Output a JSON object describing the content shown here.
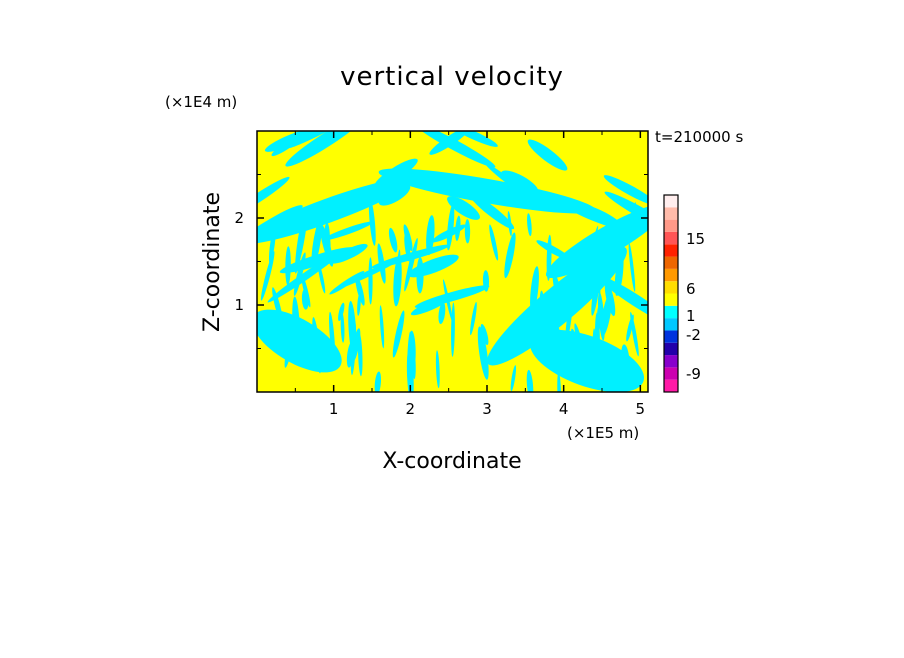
{
  "chart_data": {
    "type": "heatmap",
    "title": "vertical velocity",
    "time_label": "t=210000 s",
    "xlabel": "X-coordinate",
    "ylabel": "Z-coordinate",
    "x_unit": "(×1E5 m)",
    "y_unit": "(×1E4 m)",
    "xlim": [
      0,
      5.1
    ],
    "ylim": [
      0,
      3.0
    ],
    "x_ticks": [
      "1",
      "2",
      "3",
      "4",
      "5"
    ],
    "x_tick_values": [
      1,
      2,
      3,
      4,
      5
    ],
    "y_ticks": [
      "1",
      "2"
    ],
    "y_tick_values": [
      1,
      2
    ],
    "colorbar": {
      "labels": [
        "15",
        "6",
        "1",
        "-2",
        "-9"
      ],
      "label_values": [
        15,
        6,
        1,
        -2,
        -9
      ],
      "bands": [
        {
          "color": "#ff1aa6"
        },
        {
          "color": "#cc00b0"
        },
        {
          "color": "#8800cc"
        },
        {
          "color": "#2200aa"
        },
        {
          "color": "#0033dd"
        },
        {
          "color": "#00c8ff"
        },
        {
          "color": "#00ffff"
        },
        {
          "color": "#ffff00"
        },
        {
          "color": "#ffdd00"
        },
        {
          "color": "#ff9900"
        },
        {
          "color": "#ee6600"
        },
        {
          "color": "#ff2200"
        },
        {
          "color": "#ff5555"
        },
        {
          "color": "#ff9988"
        },
        {
          "color": "#ffbbaa"
        },
        {
          "color": "#ffeeee"
        }
      ]
    },
    "field_colors": {
      "positive": "#ffff00",
      "negative": "#00f0ff"
    },
    "description_pattern": "banded alternating positive/negative vertical velocity"
  }
}
